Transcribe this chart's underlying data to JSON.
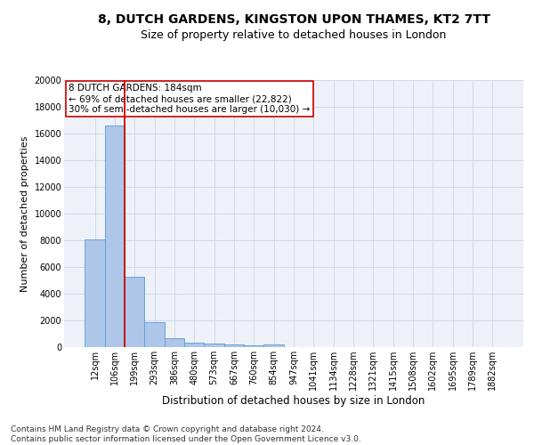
{
  "title1": "8, DUTCH GARDENS, KINGSTON UPON THAMES, KT2 7TT",
  "title2": "Size of property relative to detached houses in London",
  "xlabel": "Distribution of detached houses by size in London",
  "ylabel": "Number of detached properties",
  "categories": [
    "12sqm",
    "106sqm",
    "199sqm",
    "293sqm",
    "386sqm",
    "480sqm",
    "573sqm",
    "667sqm",
    "760sqm",
    "854sqm",
    "947sqm",
    "1041sqm",
    "1134sqm",
    "1228sqm",
    "1321sqm",
    "1415sqm",
    "1508sqm",
    "1602sqm",
    "1695sqm",
    "1789sqm",
    "1882sqm"
  ],
  "values": [
    8100,
    16600,
    5300,
    1850,
    700,
    350,
    270,
    200,
    150,
    200,
    0,
    0,
    0,
    0,
    0,
    0,
    0,
    0,
    0,
    0,
    0
  ],
  "bar_color": "#aec6e8",
  "bar_edge_color": "#5b9bd5",
  "grid_color": "#d0d8e8",
  "background_color": "#eef2f8",
  "vline_x_index": 1,
  "vline_color": "#cc0000",
  "annotation_text": "8 DUTCH GARDENS: 184sqm\n← 69% of detached houses are smaller (22,822)\n30% of semi-detached houses are larger (10,030) →",
  "annotation_box_color": "#ffffff",
  "annotation_box_edge": "#cc0000",
  "footnote": "Contains HM Land Registry data © Crown copyright and database right 2024.\nContains public sector information licensed under the Open Government Licence v3.0.",
  "ylim": [
    0,
    20000
  ],
  "title1_fontsize": 10,
  "title2_fontsize": 9,
  "xlabel_fontsize": 8.5,
  "ylabel_fontsize": 8,
  "tick_fontsize": 7,
  "annotation_fontsize": 7.5,
  "footnote_fontsize": 6.5
}
